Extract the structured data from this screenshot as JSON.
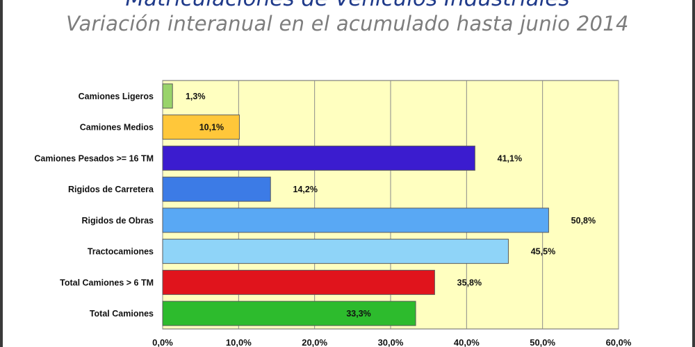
{
  "title": "Matriculaciones de Vehículos Industriales",
  "subtitle": "Variación interanual en el acumulado hasta junio 2014",
  "chart_data": {
    "type": "bar",
    "orientation": "horizontal",
    "categories": [
      "Camiones Ligeros",
      "Camiones Medios",
      "Camiones Pesados >= 16 TM",
      "Rigidos de Carretera",
      "Rigidos de Obras",
      "Tractocamiones",
      "Total Camiones  > 6 TM",
      "Total Camiones"
    ],
    "values": [
      1.3,
      10.1,
      41.1,
      14.2,
      50.8,
      45.5,
      35.8,
      33.3
    ],
    "data_labels": [
      "1,3%",
      "10,1%",
      "41,1%",
      "14,2%",
      "50,8%",
      "45,5%",
      "35,8%",
      "33,3%"
    ],
    "bar_colors": [
      "#99d36b",
      "#ffc73a",
      "#3b1ccf",
      "#3c7be6",
      "#59a8f4",
      "#8fd4f8",
      "#e0141c",
      "#2dbb2d"
    ],
    "xlim": [
      0,
      60
    ],
    "xticks": [
      0,
      10,
      20,
      30,
      40,
      50,
      60
    ],
    "xtick_labels": [
      "0,0%",
      "10,0%",
      "20,0%",
      "30,0%",
      "40,0%",
      "50,0%",
      "60,0%"
    ],
    "grid": true,
    "plot_background": "#ffffc0",
    "legend": "none"
  }
}
